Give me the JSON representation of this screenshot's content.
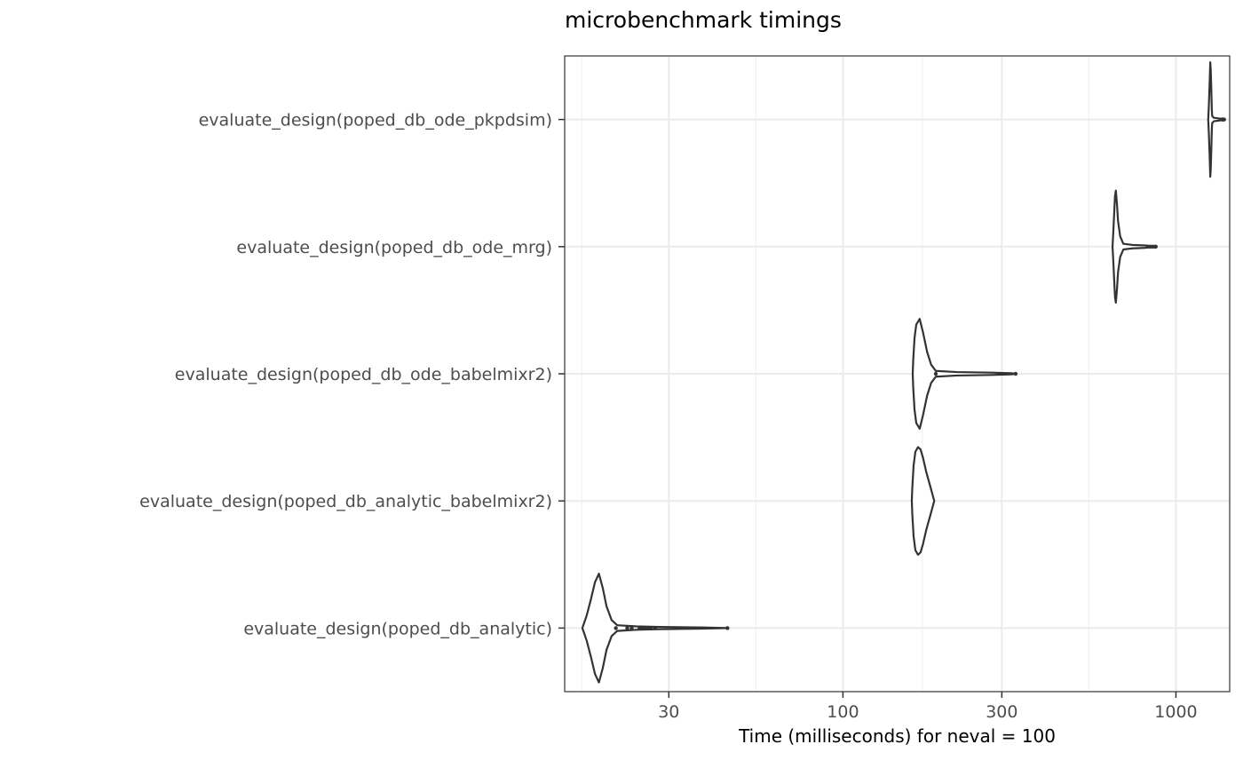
{
  "chart_data": {
    "type": "violin",
    "title": "microbenchmark timings",
    "xlabel": "Time (milliseconds) for neval = 100",
    "ylabel": "",
    "x_scale": "log10",
    "xlim": [
      14.6,
      1450
    ],
    "x_ticks": [
      30,
      100,
      300,
      1000
    ],
    "x_tick_labels": [
      "30",
      "100",
      "300",
      "1000"
    ],
    "grid": true,
    "categories": [
      "evaluate_design(poped_db_ode_pkpdsim)",
      "evaluate_design(poped_db_ode_mrg)",
      "evaluate_design(poped_db_ode_babelmixr2)",
      "evaluate_design(poped_db_analytic_babelmixr2)",
      "evaluate_design(poped_db_analytic)"
    ],
    "series": [
      {
        "category": "evaluate_design(poped_db_ode_pkpdsim)",
        "profile": [
          [
            1250,
            0
          ],
          [
            1255,
            0.22
          ],
          [
            1262,
            0.62
          ],
          [
            1268,
            1.0
          ],
          [
            1272,
            0.86
          ],
          [
            1276,
            0.6
          ],
          [
            1279,
            0.36
          ],
          [
            1282,
            0.16
          ],
          [
            1285,
            0.06
          ],
          [
            1300,
            0.03
          ],
          [
            1340,
            0.02
          ],
          [
            1375,
            0.01
          ],
          [
            1395,
            0
          ]
        ],
        "outliers": [
          1375,
          1380,
          1385,
          1390,
          1395
        ]
      },
      {
        "category": "evaluate_design(poped_db_ode_mrg)",
        "profile": [
          [
            645,
            0
          ],
          [
            648,
            0.22
          ],
          [
            652,
            0.55
          ],
          [
            656,
            0.88
          ],
          [
            660,
            0.98
          ],
          [
            665,
            0.75
          ],
          [
            670,
            0.45
          ],
          [
            680,
            0.18
          ],
          [
            695,
            0.05
          ],
          [
            740,
            0.03
          ],
          [
            810,
            0.02
          ],
          [
            850,
            0.01
          ],
          [
            870,
            0
          ]
        ],
        "outliers": [
          822,
          838,
          850,
          862,
          870
        ]
      },
      {
        "category": "evaluate_design(poped_db_ode_babelmixr2)",
        "profile": [
          [
            162,
            0
          ],
          [
            162.5,
            0.22
          ],
          [
            164,
            0.62
          ],
          [
            166,
            0.86
          ],
          [
            170,
            0.96
          ],
          [
            174,
            0.72
          ],
          [
            179,
            0.38
          ],
          [
            184,
            0.16
          ],
          [
            190,
            0.05
          ],
          [
            220,
            0.03
          ],
          [
            280,
            0.02
          ],
          [
            320,
            0.01
          ],
          [
            330,
            0
          ]
        ],
        "outliers": [
          190,
          330
        ]
      },
      {
        "category": "evaluate_design(poped_db_analytic_babelmixr2)",
        "profile": [
          [
            161,
            0
          ],
          [
            161.5,
            0.22
          ],
          [
            163,
            0.62
          ],
          [
            165,
            0.86
          ],
          [
            168,
            0.94
          ],
          [
            171,
            0.9
          ],
          [
            174,
            0.75
          ],
          [
            178,
            0.5
          ],
          [
            183,
            0.25
          ],
          [
            186,
            0.1
          ],
          [
            188,
            0
          ]
        ],
        "outliers": []
      },
      {
        "category": "evaluate_design(poped_db_analytic)",
        "profile": [
          [
            16.5,
            0
          ],
          [
            17.0,
            0.22
          ],
          [
            17.5,
            0.5
          ],
          [
            18.0,
            0.8
          ],
          [
            18.5,
            0.95
          ],
          [
            19.0,
            0.7
          ],
          [
            19.5,
            0.38
          ],
          [
            20.2,
            0.14
          ],
          [
            21.0,
            0.05
          ],
          [
            24,
            0.03
          ],
          [
            28,
            0.02
          ],
          [
            38,
            0.01
          ],
          [
            45,
            0
          ]
        ],
        "outliers": [
          20.8,
          22.5,
          23.2,
          24.5,
          25.0,
          25.4,
          25.9,
          26.5,
          27.3,
          45
        ]
      }
    ]
  }
}
